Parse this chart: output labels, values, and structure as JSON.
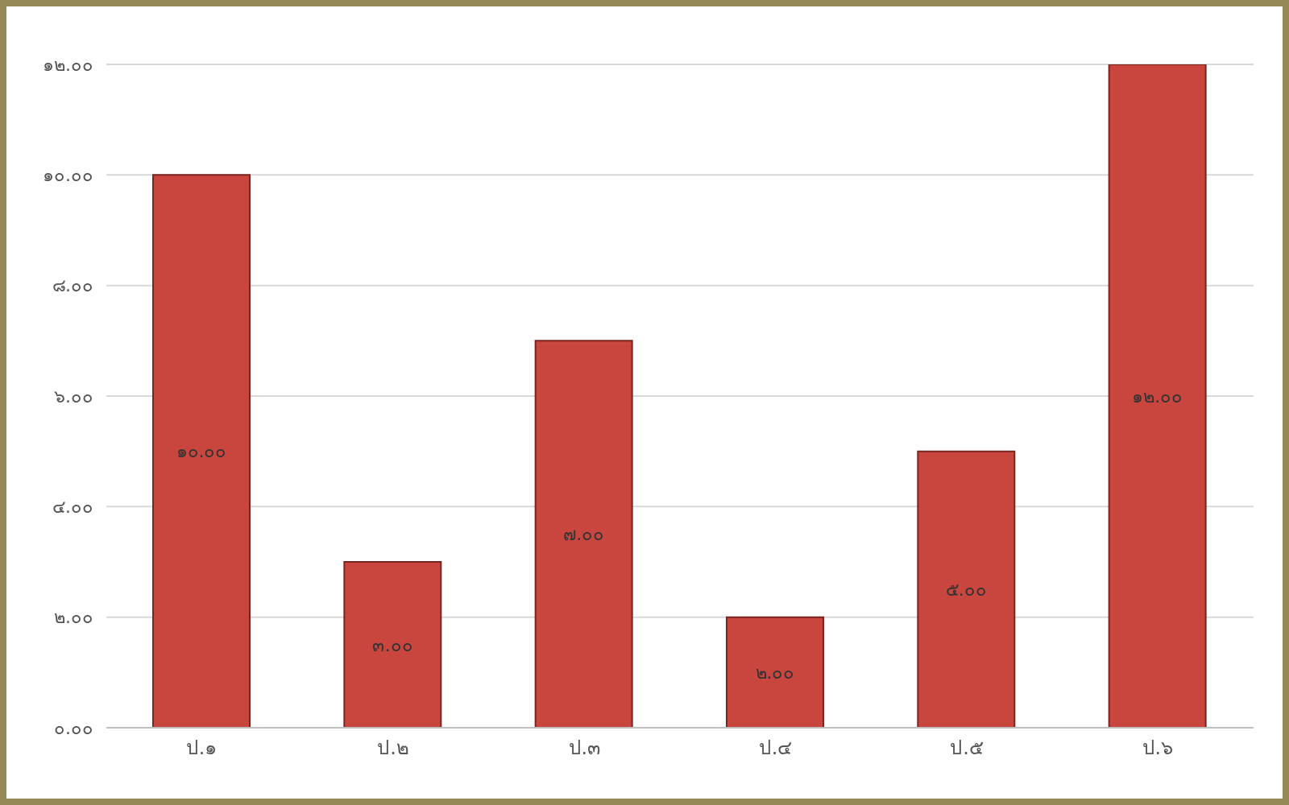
{
  "chart_data": {
    "type": "bar",
    "categories": [
      "ป.๑",
      "ป.๒",
      "ป.๓",
      "ป.๔",
      "ป.๕",
      "ป.๖"
    ],
    "values": [
      10,
      3,
      7,
      2,
      5,
      12
    ],
    "value_labels": [
      "๑๐.๐๐",
      "๓.๐๐",
      "๗.๐๐",
      "๒.๐๐",
      "๕.๐๐",
      "๑๒.๐๐"
    ],
    "color": "#c9463f",
    "ylim": [
      0,
      12
    ],
    "yticks": [
      {
        "value": 0,
        "label": "๐.๐๐"
      },
      {
        "value": 2,
        "label": "๒.๐๐"
      },
      {
        "value": 4,
        "label": "๔.๐๐"
      },
      {
        "value": 6,
        "label": "๖.๐๐"
      },
      {
        "value": 8,
        "label": "๘.๐๐"
      },
      {
        "value": 10,
        "label": "๑๐.๐๐"
      },
      {
        "value": 12,
        "label": "๑๒.๐๐"
      }
    ],
    "grid": "y",
    "legend": false
  }
}
